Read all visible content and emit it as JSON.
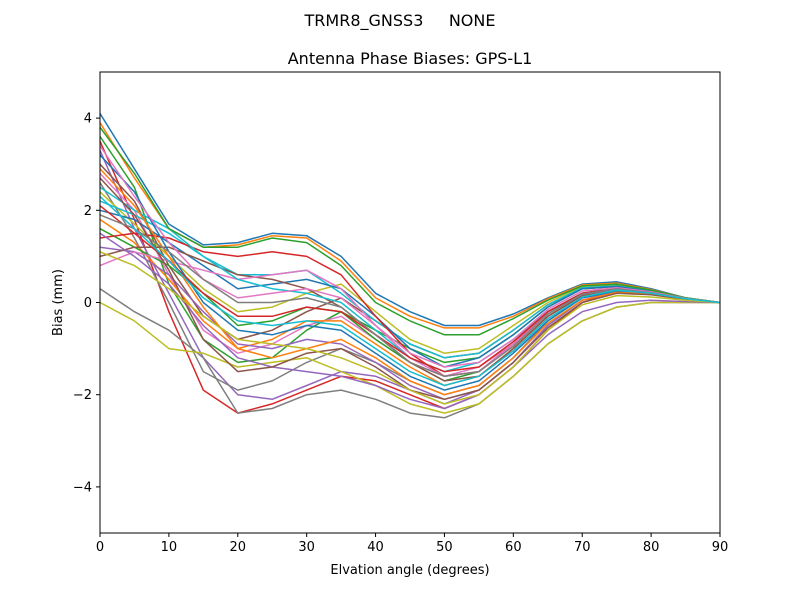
{
  "figure": {
    "suptitle": "TRMR8_GNSS3     NONE"
  },
  "chart_data": {
    "type": "line",
    "title": "Antenna Phase Biases: GPS-L1",
    "xlabel": "Elvation angle (degrees)",
    "ylabel": "Bias (mm)",
    "xlim": [
      0,
      90
    ],
    "ylim": [
      -5,
      5
    ],
    "xticks": [
      0,
      10,
      20,
      30,
      40,
      50,
      60,
      70,
      80,
      90
    ],
    "xtick_labels": [
      "0",
      "10",
      "20",
      "30",
      "40",
      "50",
      "60",
      "70",
      "80",
      "90"
    ],
    "yticks": [
      -4,
      -2,
      0,
      2,
      4
    ],
    "ytick_labels": [
      "−4",
      "−2",
      "0",
      "2",
      "4"
    ],
    "grid": false,
    "legend": "none",
    "colors": [
      "#1f77b4",
      "#ff7f0e",
      "#2ca02c",
      "#d62728",
      "#9467bd",
      "#8c564b",
      "#e377c2",
      "#7f7f7f",
      "#bcbd22",
      "#17becf"
    ],
    "x": [
      0,
      5,
      10,
      15,
      20,
      25,
      30,
      35,
      40,
      45,
      50,
      55,
      60,
      65,
      70,
      75,
      80,
      85,
      90
    ],
    "series": [
      {
        "values": [
          4.1,
          2.9,
          1.7,
          1.25,
          1.3,
          1.5,
          1.45,
          1.0,
          0.2,
          -0.2,
          -0.5,
          -0.5,
          -0.25,
          0.1,
          0.4,
          0.45,
          0.3,
          0.1,
          0.0
        ]
      },
      {
        "values": [
          3.9,
          2.7,
          1.6,
          1.2,
          1.25,
          1.45,
          1.4,
          0.9,
          0.1,
          -0.3,
          -0.55,
          -0.55,
          -0.3,
          0.08,
          0.38,
          0.42,
          0.28,
          0.1,
          0.0
        ]
      },
      {
        "values": [
          3.6,
          2.5,
          0.4,
          -0.8,
          -1.3,
          -1.2,
          -0.6,
          -0.2,
          -0.6,
          -1.0,
          -1.3,
          -1.2,
          -0.7,
          -0.1,
          0.3,
          0.35,
          0.25,
          0.1,
          0.0
        ]
      },
      {
        "values": [
          3.5,
          1.8,
          -0.2,
          -1.9,
          -2.4,
          -2.2,
          -1.9,
          -1.6,
          -1.7,
          -2.0,
          -2.3,
          -2.0,
          -1.4,
          -0.6,
          0.0,
          0.25,
          0.2,
          0.08,
          0.0
        ]
      },
      {
        "values": [
          3.3,
          1.6,
          0.2,
          -1.2,
          -2.0,
          -2.1,
          -1.8,
          -1.5,
          -1.6,
          -1.9,
          -2.2,
          -1.9,
          -1.3,
          -0.5,
          0.05,
          0.25,
          0.2,
          0.08,
          0.0
        ]
      },
      {
        "values": [
          3.0,
          2.2,
          0.8,
          -0.3,
          -0.8,
          -0.6,
          -0.2,
          0.1,
          -0.4,
          -0.9,
          -1.2,
          -1.1,
          -0.6,
          -0.05,
          0.3,
          0.35,
          0.25,
          0.1,
          0.0
        ]
      },
      {
        "values": [
          2.8,
          2.0,
          0.6,
          -0.6,
          -1.1,
          -0.9,
          -0.5,
          -0.3,
          -0.8,
          -1.3,
          -1.6,
          -1.4,
          -0.9,
          -0.2,
          0.2,
          0.3,
          0.22,
          0.08,
          0.0
        ]
      },
      {
        "values": [
          2.6,
          1.4,
          0.0,
          -1.5,
          -1.9,
          -1.7,
          -1.3,
          -1.0,
          -1.3,
          -1.7,
          -2.0,
          -1.8,
          -1.2,
          -0.4,
          0.1,
          0.25,
          0.2,
          0.08,
          0.0
        ]
      },
      {
        "values": [
          2.4,
          1.7,
          1.0,
          0.3,
          -0.2,
          -0.1,
          0.2,
          0.4,
          -0.2,
          -0.8,
          -1.1,
          -1.0,
          -0.5,
          0.0,
          0.35,
          0.38,
          0.26,
          0.1,
          0.0
        ]
      },
      {
        "values": [
          2.2,
          1.9,
          1.5,
          1.0,
          0.6,
          0.6,
          0.7,
          0.2,
          -0.4,
          -0.9,
          -1.2,
          -1.1,
          -0.6,
          -0.05,
          0.32,
          0.36,
          0.25,
          0.1,
          0.0
        ]
      },
      {
        "values": [
          2.0,
          1.8,
          1.3,
          0.8,
          0.3,
          0.4,
          0.5,
          0.3,
          -0.3,
          -1.0,
          -1.4,
          -1.2,
          -0.7,
          -0.1,
          0.3,
          0.35,
          0.24,
          0.09,
          0.0
        ]
      },
      {
        "values": [
          1.8,
          1.3,
          0.5,
          -0.4,
          -1.0,
          -0.8,
          -0.4,
          -0.4,
          -0.9,
          -1.4,
          -1.8,
          -1.6,
          -1.0,
          -0.3,
          0.15,
          0.28,
          0.2,
          0.08,
          0.0
        ]
      },
      {
        "values": [
          1.6,
          1.2,
          0.8,
          0.2,
          -0.5,
          -0.4,
          -0.1,
          -0.2,
          -0.8,
          -1.3,
          -1.7,
          -1.5,
          -0.9,
          -0.25,
          0.18,
          0.3,
          0.21,
          0.08,
          0.0
        ]
      },
      {
        "values": [
          1.4,
          1.5,
          1.4,
          1.1,
          1.0,
          1.1,
          1.0,
          0.6,
          -0.3,
          -1.1,
          -1.6,
          -1.5,
          -0.9,
          -0.2,
          0.2,
          0.32,
          0.22,
          0.08,
          0.0
        ]
      },
      {
        "values": [
          1.2,
          1.1,
          0.6,
          -0.2,
          -0.9,
          -1.0,
          -0.8,
          -0.9,
          -1.3,
          -1.8,
          -2.1,
          -1.9,
          -1.3,
          -0.5,
          0.05,
          0.22,
          0.18,
          0.07,
          0.0
        ]
      },
      {
        "values": [
          1.0,
          1.2,
          1.2,
          0.9,
          0.6,
          0.5,
          0.3,
          -0.1,
          -0.7,
          -1.3,
          -1.7,
          -1.6,
          -1.0,
          -0.3,
          0.15,
          0.28,
          0.2,
          0.08,
          0.0
        ]
      },
      {
        "values": [
          0.8,
          1.1,
          0.9,
          0.7,
          0.5,
          0.6,
          0.7,
          0.3,
          -0.5,
          -1.2,
          -1.6,
          -1.5,
          -0.9,
          -0.25,
          0.18,
          0.3,
          0.21,
          0.08,
          0.0
        ]
      },
      {
        "values": [
          0.3,
          -0.2,
          -0.6,
          -1.2,
          -2.4,
          -2.3,
          -2.0,
          -1.9,
          -2.1,
          -2.4,
          -2.5,
          -2.2,
          -1.6,
          -0.9,
          -0.4,
          -0.1,
          0.0,
          0.0,
          0.0
        ]
      },
      {
        "values": [
          0.0,
          -0.4,
          -1.0,
          -1.1,
          -1.4,
          -1.3,
          -1.2,
          -1.5,
          -1.8,
          -2.2,
          -2.4,
          -2.2,
          -1.6,
          -0.9,
          -0.4,
          -0.1,
          0.0,
          0.0,
          0.0
        ]
      },
      {
        "values": [
          2.5,
          2.0,
          1.6,
          1.0,
          0.5,
          0.3,
          0.2,
          0.0,
          -0.6,
          -1.2,
          -1.5,
          -1.3,
          -0.8,
          -0.2,
          0.2,
          0.3,
          0.22,
          0.08,
          0.0
        ]
      },
      {
        "values": [
          3.2,
          2.4,
          1.1,
          0.0,
          -0.6,
          -0.7,
          -0.5,
          -0.6,
          -1.1,
          -1.6,
          -1.9,
          -1.7,
          -1.1,
          -0.4,
          0.1,
          0.25,
          0.2,
          0.08,
          0.0
        ]
      },
      {
        "values": [
          2.9,
          2.1,
          1.0,
          -0.1,
          -1.0,
          -1.2,
          -1.0,
          -0.8,
          -1.2,
          -1.7,
          -2.0,
          -1.8,
          -1.2,
          -0.45,
          0.05,
          0.22,
          0.18,
          0.07,
          0.0
        ]
      },
      {
        "values": [
          3.8,
          2.8,
          1.6,
          1.2,
          1.2,
          1.4,
          1.3,
          0.8,
          0.0,
          -0.4,
          -0.7,
          -0.7,
          -0.35,
          0.05,
          0.36,
          0.4,
          0.27,
          0.1,
          0.0
        ]
      },
      {
        "values": [
          2.1,
          1.5,
          0.9,
          0.2,
          -0.3,
          -0.3,
          -0.1,
          -0.2,
          -0.7,
          -1.2,
          -1.5,
          -1.4,
          -0.85,
          -0.2,
          0.2,
          0.3,
          0.21,
          0.08,
          0.0
        ]
      },
      {
        "values": [
          1.5,
          1.0,
          0.4,
          -0.5,
          -1.2,
          -1.4,
          -1.5,
          -1.6,
          -1.8,
          -2.1,
          -2.3,
          -2.0,
          -1.4,
          -0.7,
          -0.2,
          0.0,
          0.05,
          0.02,
          0.0
        ]
      },
      {
        "values": [
          2.7,
          1.9,
          0.7,
          -0.8,
          -1.5,
          -1.4,
          -1.1,
          -1.0,
          -1.4,
          -1.9,
          -2.1,
          -1.9,
          -1.3,
          -0.55,
          0.0,
          0.2,
          0.17,
          0.07,
          0.0
        ]
      },
      {
        "values": [
          3.4,
          2.3,
          1.3,
          0.5,
          0.1,
          0.2,
          0.3,
          0.1,
          -0.5,
          -1.1,
          -1.4,
          -1.3,
          -0.8,
          -0.15,
          0.25,
          0.32,
          0.23,
          0.09,
          0.0
        ]
      },
      {
        "values": [
          1.9,
          1.6,
          1.1,
          0.5,
          0.0,
          0.0,
          0.1,
          -0.1,
          -0.7,
          -1.3,
          -1.6,
          -1.5,
          -0.95,
          -0.25,
          0.18,
          0.3,
          0.21,
          0.08,
          0.0
        ]
      },
      {
        "values": [
          1.1,
          0.8,
          0.3,
          -0.3,
          -0.8,
          -0.9,
          -1.0,
          -1.2,
          -1.5,
          -1.9,
          -2.2,
          -2.0,
          -1.4,
          -0.6,
          -0.05,
          0.15,
          0.12,
          0.05,
          0.0
        ]
      },
      {
        "values": [
          2.3,
          1.6,
          0.9,
          0.1,
          -0.4,
          -0.5,
          -0.4,
          -0.5,
          -1.0,
          -1.5,
          -1.8,
          -1.6,
          -1.05,
          -0.35,
          0.12,
          0.27,
          0.2,
          0.08,
          0.0
        ]
      }
    ]
  }
}
